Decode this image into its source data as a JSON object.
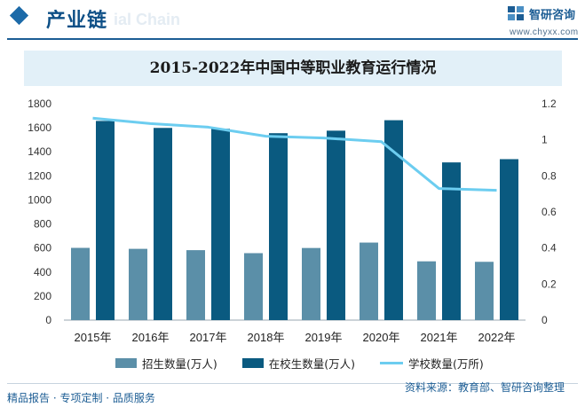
{
  "header": {
    "section_title": "产业链",
    "ghost_text": "ial Chain",
    "brand_name": "智研咨询",
    "brand_url": "www.chyxx.com",
    "brand_color": "#1c5d94"
  },
  "footer": {
    "left_text": "精品报告 · 专项定制 · 品质服务",
    "source_text": "资料来源：教育部、智研咨询整理"
  },
  "chart_data": {
    "type": "bar",
    "title": "2015-2022年中国中等职业教育运行情况",
    "categories": [
      "2015年",
      "2016年",
      "2017年",
      "2018年",
      "2019年",
      "2020年",
      "2021年",
      "2022年"
    ],
    "series": [
      {
        "name": "招生数量(万人)",
        "type": "bar",
        "axis": "left",
        "color": "#5b8fa8",
        "values": [
          601,
          593,
          582,
          557,
          600,
          645,
          489,
          485
        ]
      },
      {
        "name": "在校生数量(万人)",
        "type": "bar",
        "axis": "left",
        "color": "#0a5a80",
        "values": [
          1657,
          1599,
          1592,
          1555,
          1576,
          1663,
          1312,
          1339
        ]
      },
      {
        "name": "学校数量(万所)",
        "type": "line",
        "axis": "right",
        "color": "#6ccdf0",
        "values": [
          1.12,
          1.09,
          1.07,
          1.02,
          1.01,
          0.99,
          0.73,
          0.72
        ]
      }
    ],
    "y_left": {
      "ticks": [
        "0",
        "200",
        "400",
        "600",
        "800",
        "1000",
        "1200",
        "1400",
        "1600",
        "1800"
      ],
      "ylim": [
        0,
        1800
      ]
    },
    "y_right": {
      "ticks": [
        "0",
        "0.2",
        "0.4",
        "0.6",
        "0.8",
        "1",
        "1.2"
      ],
      "ylim": [
        0,
        1.2
      ]
    },
    "legend_position": "bottom",
    "grid": false
  }
}
